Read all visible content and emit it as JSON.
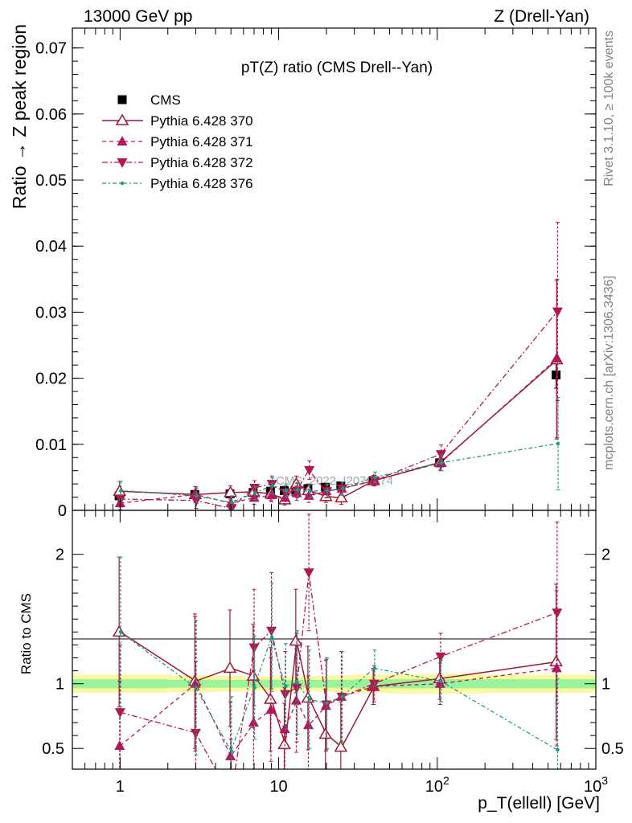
{
  "header": {
    "left": "13000 GeV pp",
    "right": "Z (Drell-Yan)"
  },
  "side_labels": {
    "rivet": "Rivet 3.1.10, ≥ 100k events",
    "mcplots": "mcplots.cern.ch [arXiv:1306.3436]"
  },
  "watermark": "CMS_2022_I2079374",
  "colors": {
    "cms": "#000000",
    "p370": "#9b1b30",
    "p371": "#b0175e",
    "p372": "#b0184f",
    "p376": "#1b9a84",
    "band_yellow": "#fbf8a0",
    "band_green": "#99f39a"
  },
  "chart_data": [
    {
      "type": "line",
      "title": "pT(Z) ratio (CMS Drell--Yan)",
      "ylabel": "Ratio → Z peak region",
      "xscale": "log",
      "xlim": [
        0.5,
        1000
      ],
      "ylim": [
        0,
        0.073
      ],
      "yticks": [
        "0",
        "0.01",
        "0.02",
        "0.03",
        "0.04",
        "0.05",
        "0.06",
        "0.07"
      ],
      "legend_position": "top-left",
      "x": [
        1,
        3,
        5,
        7,
        9,
        11,
        13,
        15.5,
        20,
        25,
        40,
        105,
        570
      ],
      "series": [
        {
          "name": "CMS",
          "marker": "square",
          "values": [
            0.0022,
            0.0024,
            0.0025,
            0.0027,
            0.0029,
            0.003,
            0.0031,
            0.0033,
            0.0035,
            0.0037,
            0.0045,
            0.0072,
            0.0205
          ],
          "errors": [
            0.0003,
            0.0003,
            0.0003,
            0.0003,
            0.0003,
            0.0003,
            0.0003,
            0.0003,
            0.0003,
            0.0003,
            0.0004,
            0.0006,
            0.002
          ]
        },
        {
          "name": "Pythia 6.428 370",
          "marker": "triangle-up-open",
          "values": [
            0.0029,
            0.0024,
            0.0027,
            0.0028,
            0.0025,
            0.0016,
            0.004,
            0.003,
            0.0021,
            0.0019,
            0.0045,
            0.0073,
            0.0228
          ],
          "errors": [
            0.0015,
            0.0012,
            0.001,
            0.0009,
            0.001,
            0.0008,
            0.0012,
            0.001,
            0.0009,
            0.001,
            0.0008,
            0.0012,
            0.012
          ]
        },
        {
          "name": "Pythia 6.428 371",
          "marker": "triangle-up",
          "values": [
            0.0011,
            0.0024,
            0.0011,
            0.0019,
            0.0023,
            0.0019,
            0.0026,
            0.0022,
            0.0029,
            0.0033,
            0.0045,
            0.0072,
            0.023
          ],
          "errors": [
            0.001,
            0.0012,
            0.001,
            0.001,
            0.001,
            0.0009,
            0.0011,
            0.001,
            0.001,
            0.001,
            0.0008,
            0.0012,
            0.012
          ]
        },
        {
          "name": "Pythia 6.428 372",
          "marker": "triangle-down",
          "values": [
            0.0017,
            0.0015,
            0.0003,
            0.0034,
            0.004,
            0.0027,
            0.003,
            0.0061,
            0.0029,
            0.0033,
            0.0045,
            0.0085,
            0.0301
          ],
          "errors": [
            0.0012,
            0.0012,
            0.001,
            0.0011,
            0.0012,
            0.001,
            0.0011,
            0.0014,
            0.001,
            0.001,
            0.0008,
            0.0014,
            0.0135
          ]
        },
        {
          "name": "Pythia 6.428 376",
          "marker": "dot",
          "values": [
            0.003,
            0.0022,
            0.0012,
            0.0026,
            0.0037,
            0.003,
            0.0031,
            0.0029,
            0.003,
            0.0033,
            0.005,
            0.0072,
            0.0101
          ],
          "errors": [
            0.0014,
            0.0012,
            0.001,
            0.001,
            0.0012,
            0.001,
            0.0011,
            0.001,
            0.001,
            0.001,
            0.0008,
            0.0012,
            0.007
          ]
        }
      ]
    },
    {
      "type": "line",
      "ylabel": "Ratio to CMS",
      "xlabel": "p_T(ellell) [GeV]",
      "xscale": "log",
      "xlim": [
        0.5,
        1000
      ],
      "ylim": [
        0.34,
        2.34
      ],
      "yticks": [
        "0.5",
        "1",
        "2"
      ],
      "xticks": [
        "1",
        "10",
        "10^2",
        "10^3"
      ],
      "reference_line": 1,
      "bands": [
        {
          "color": "yellow",
          "edges": [
            0.5,
            2,
            4,
            6,
            8,
            10,
            12,
            14,
            17,
            22,
            30,
            50,
            200,
            1000
          ],
          "half_widths": [
            0.07,
            0.065,
            0.06,
            0.055,
            0.055,
            0.055,
            0.055,
            0.055,
            0.06,
            0.065,
            0.07,
            0.075,
            0.07
          ]
        },
        {
          "color": "green",
          "edges": [
            0.5,
            2,
            4,
            6,
            8,
            10,
            12,
            14,
            17,
            22,
            30,
            50,
            200,
            1000
          ],
          "half_widths": [
            0.035,
            0.03,
            0.03,
            0.03,
            0.03,
            0.03,
            0.03,
            0.03,
            0.03,
            0.03,
            0.035,
            0.035,
            0.035
          ]
        }
      ],
      "x": [
        1,
        3,
        5,
        7,
        9,
        11,
        13,
        15.5,
        20,
        25,
        40,
        105,
        570
      ],
      "series": [
        {
          "name": "Pythia 6.428 370",
          "marker": "triangle-up-open",
          "values": [
            1.4,
            1.02,
            1.12,
            1.06,
            0.88,
            0.53,
            1.33,
            0.89,
            0.61,
            0.51,
            0.98,
            1.04,
            1.17
          ],
          "errors": [
            0.58,
            0.52,
            0.45,
            0.4,
            0.4,
            0.32,
            0.4,
            0.4,
            0.35,
            0.35,
            0.14,
            0.16,
            0.6
          ]
        },
        {
          "name": "Pythia 6.428 371",
          "marker": "triangle-up",
          "values": [
            0.52,
            1.0,
            0.44,
            0.7,
            0.8,
            0.65,
            0.87,
            0.68,
            0.83,
            0.9,
            0.98,
            1.0,
            1.12
          ],
          "errors": [
            0.5,
            0.52,
            0.42,
            0.4,
            0.4,
            0.32,
            0.4,
            0.38,
            0.35,
            0.35,
            0.14,
            0.16,
            0.6
          ]
        },
        {
          "name": "Pythia 6.428 372",
          "marker": "triangle-down",
          "values": [
            0.78,
            0.62,
            0.12,
            1.28,
            1.41,
            0.92,
            0.97,
            1.86,
            0.84,
            0.9,
            1.0,
            1.21,
            1.55
          ],
          "errors": [
            0.52,
            0.55,
            0.45,
            0.45,
            0.45,
            0.33,
            0.42,
            0.45,
            0.35,
            0.35,
            0.14,
            0.18,
            0.7
          ]
        },
        {
          "name": "Pythia 6.428 376",
          "marker": "dot",
          "values": [
            1.4,
            0.97,
            0.48,
            0.97,
            1.36,
            0.98,
            1.01,
            0.88,
            0.85,
            0.9,
            1.12,
            1.02,
            0.49
          ],
          "errors": [
            0.58,
            0.52,
            0.42,
            0.4,
            0.42,
            0.33,
            0.4,
            0.38,
            0.35,
            0.35,
            0.14,
            0.16,
            0.55
          ]
        }
      ]
    }
  ]
}
